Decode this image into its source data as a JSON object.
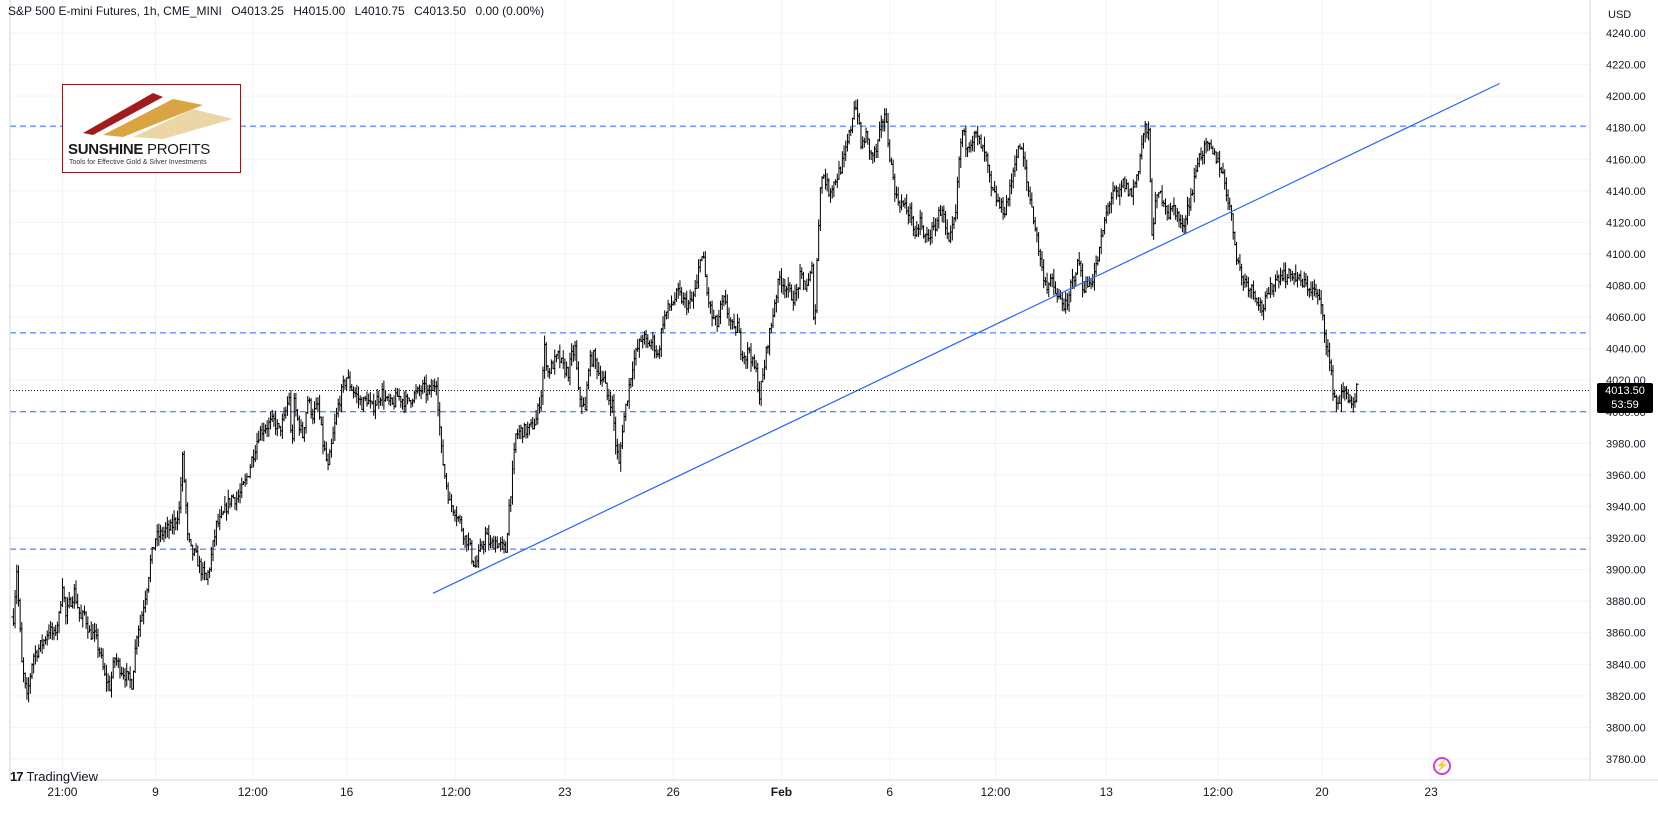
{
  "header": {
    "symbol": "S&P 500 E-mini Futures, 1h, CME_MINI",
    "open": "O4013.25",
    "high": "H4015.00",
    "low": "L4010.75",
    "close": "C4013.50",
    "change": "0.00 (0.00%)"
  },
  "currency": "USD",
  "price_tag": {
    "price": "4013.50",
    "countdown": "53:59"
  },
  "logo": {
    "brand_bold": "SUNSHINE",
    "brand_light": " PROFITS",
    "tagline": "Tools for Effective Gold & Silver Investments"
  },
  "footer": {
    "brand": "TradingView"
  },
  "icons": {
    "alert": "lightning-alert-icon",
    "tv": "tradingview-logo-icon"
  },
  "colors": {
    "candle": "#000000",
    "trendline": "#2962ff",
    "level": "#2962ff",
    "alert": "#d23ed8"
  },
  "chart_data": {
    "type": "candlestick",
    "interval": "1h",
    "ylim": [
      3765,
      4245
    ],
    "y_ticks": [
      3780,
      3800,
      3820,
      3840,
      3860,
      3880,
      3900,
      3920,
      3940,
      3960,
      3980,
      4000,
      4020,
      4040,
      4060,
      4080,
      4100,
      4120,
      4140,
      4160,
      4180,
      4200,
      4220,
      4240
    ],
    "x_tick_labels": [
      "21:00",
      "9",
      "12:00",
      "16",
      "12:00",
      "23",
      "26",
      "Feb",
      "6",
      "12:00",
      "13",
      "12:00",
      "20",
      "23"
    ],
    "x_tick_index": [
      62,
      172,
      287,
      398,
      527,
      656,
      784,
      912,
      1040,
      1165,
      1296,
      1428,
      1551,
      1680
    ],
    "horizontal_levels": [
      4181,
      4050,
      4000,
      3913
    ],
    "current_price": 4013.5,
    "trendline": [
      {
        "x": 500,
        "y": 3885
      },
      {
        "x": 1761,
        "y": 4208
      }
    ],
    "anchors": [
      [
        4,
        3870
      ],
      [
        8,
        3900
      ],
      [
        14,
        3840
      ],
      [
        20,
        3818
      ],
      [
        27,
        3845
      ],
      [
        34,
        3850
      ],
      [
        40,
        3855
      ],
      [
        46,
        3862
      ],
      [
        52,
        3858
      ],
      [
        58,
        3870
      ],
      [
        62,
        3892
      ],
      [
        66,
        3870
      ],
      [
        70,
        3878
      ],
      [
        76,
        3886
      ],
      [
        84,
        3868
      ],
      [
        88,
        3872
      ],
      [
        94,
        3860
      ],
      [
        100,
        3858
      ],
      [
        106,
        3848
      ],
      [
        112,
        3832
      ],
      [
        118,
        3826
      ],
      [
        124,
        3844
      ],
      [
        130,
        3838
      ],
      [
        138,
        3832
      ],
      [
        144,
        3828
      ],
      [
        150,
        3860
      ],
      [
        156,
        3872
      ],
      [
        162,
        3890
      ],
      [
        166,
        3905
      ],
      [
        172,
        3920
      ],
      [
        178,
        3922
      ],
      [
        184,
        3925
      ],
      [
        190,
        3926
      ],
      [
        196,
        3932
      ],
      [
        200,
        3938
      ],
      [
        204,
        3970
      ],
      [
        207,
        3950
      ],
      [
        210,
        3920
      ],
      [
        214,
        3912
      ],
      [
        220,
        3908
      ],
      [
        226,
        3900
      ],
      [
        232,
        3893
      ],
      [
        236,
        3902
      ],
      [
        240,
        3915
      ],
      [
        244,
        3928
      ],
      [
        250,
        3932
      ],
      [
        256,
        3940
      ],
      [
        262,
        3946
      ],
      [
        268,
        3945
      ],
      [
        272,
        3948
      ],
      [
        278,
        3955
      ],
      [
        282,
        3962
      ],
      [
        288,
        3974
      ],
      [
        294,
        3986
      ],
      [
        300,
        3990
      ],
      [
        306,
        3992
      ],
      [
        312,
        3994
      ],
      [
        318,
        3988
      ],
      [
        324,
        3995
      ],
      [
        330,
        4010
      ],
      [
        333,
        3975
      ],
      [
        336,
        4005
      ],
      [
        340,
        3995
      ],
      [
        346,
        3985
      ],
      [
        352,
        4008
      ],
      [
        358,
        3998
      ],
      [
        364,
        4004
      ],
      [
        370,
        3980
      ],
      [
        376,
        3964
      ],
      [
        382,
        3985
      ],
      [
        388,
        4004
      ],
      [
        394,
        4016
      ],
      [
        398,
        4022
      ],
      [
        404,
        4015
      ],
      [
        410,
        4010
      ],
      [
        416,
        4005
      ],
      [
        422,
        4008
      ],
      [
        428,
        4002
      ],
      [
        434,
        4008
      ],
      [
        440,
        4012
      ],
      [
        446,
        4006
      ],
      [
        452,
        4004
      ],
      [
        458,
        4010
      ],
      [
        464,
        4008
      ],
      [
        470,
        4006
      ],
      [
        476,
        4010
      ],
      [
        482,
        4012
      ],
      [
        488,
        4015
      ],
      [
        494,
        4012
      ],
      [
        500,
        4015
      ],
      [
        504,
        4020
      ],
      [
        506,
        4005
      ],
      [
        510,
        3975
      ],
      [
        514,
        3960
      ],
      [
        520,
        3942
      ],
      [
        526,
        3938
      ],
      [
        532,
        3930
      ],
      [
        538,
        3920
      ],
      [
        542,
        3918
      ],
      [
        546,
        3908
      ],
      [
        550,
        3902
      ],
      [
        556,
        3912
      ],
      [
        562,
        3922
      ],
      [
        568,
        3915
      ],
      [
        574,
        3918
      ],
      [
        580,
        3915
      ],
      [
        586,
        3912
      ],
      [
        590,
        3940
      ],
      [
        594,
        3960
      ],
      [
        598,
        3985
      ],
      [
        604,
        3988
      ],
      [
        610,
        3988
      ],
      [
        616,
        3990
      ],
      [
        622,
        3995
      ],
      [
        628,
        4012
      ],
      [
        632,
        4040
      ],
      [
        636,
        4025
      ],
      [
        642,
        4030
      ],
      [
        648,
        4035
      ],
      [
        654,
        4028
      ],
      [
        660,
        4025
      ],
      [
        664,
        4035
      ],
      [
        668,
        4040
      ],
      [
        672,
        4012
      ],
      [
        676,
        4006
      ],
      [
        680,
        4000
      ],
      [
        684,
        4030
      ],
      [
        690,
        4035
      ],
      [
        696,
        4025
      ],
      [
        702,
        4020
      ],
      [
        706,
        4010
      ],
      [
        712,
        4005
      ],
      [
        716,
        3980
      ],
      [
        720,
        3966
      ],
      [
        724,
        3990
      ],
      [
        730,
        4010
      ],
      [
        736,
        4030
      ],
      [
        742,
        4040
      ],
      [
        748,
        4048
      ],
      [
        754,
        4042
      ],
      [
        760,
        4045
      ],
      [
        766,
        4035
      ],
      [
        772,
        4058
      ],
      [
        778,
        4065
      ],
      [
        784,
        4070
      ],
      [
        790,
        4075
      ],
      [
        796,
        4070
      ],
      [
        802,
        4068
      ],
      [
        806,
        4070
      ],
      [
        812,
        4080
      ],
      [
        816,
        4100
      ],
      [
        820,
        4095
      ],
      [
        824,
        4075
      ],
      [
        830,
        4060
      ],
      [
        836,
        4055
      ],
      [
        840,
        4065
      ],
      [
        844,
        4070
      ],
      [
        850,
        4060
      ],
      [
        856,
        4050
      ],
      [
        860,
        4055
      ],
      [
        864,
        4040
      ],
      [
        870,
        4035
      ],
      [
        874,
        4040
      ],
      [
        878,
        4030
      ],
      [
        882,
        4025
      ],
      [
        886,
        4010
      ],
      [
        890,
        4022
      ],
      [
        896,
        4045
      ],
      [
        900,
        4055
      ],
      [
        904,
        4070
      ],
      [
        910,
        4085
      ],
      [
        916,
        4080
      ],
      [
        922,
        4075
      ],
      [
        928,
        4072
      ],
      [
        934,
        4085
      ],
      [
        940,
        4080
      ],
      [
        944,
        4082
      ],
      [
        948,
        4090
      ],
      [
        951,
        4050
      ],
      [
        954,
        4095
      ],
      [
        958,
        4145
      ],
      [
        962,
        4150
      ],
      [
        968,
        4140
      ],
      [
        974,
        4145
      ],
      [
        980,
        4152
      ],
      [
        986,
        4160
      ],
      [
        990,
        4170
      ],
      [
        994,
        4180
      ],
      [
        998,
        4195
      ],
      [
        1002,
        4190
      ],
      [
        1006,
        4168
      ],
      [
        1012,
        4175
      ],
      [
        1018,
        4162
      ],
      [
        1024,
        4165
      ],
      [
        1030,
        4180
      ],
      [
        1034,
        4190
      ],
      [
        1038,
        4172
      ],
      [
        1042,
        4155
      ],
      [
        1048,
        4135
      ],
      [
        1054,
        4132
      ],
      [
        1060,
        4128
      ],
      [
        1066,
        4125
      ],
      [
        1070,
        4108
      ],
      [
        1076,
        4122
      ],
      [
        1080,
        4110
      ],
      [
        1086,
        4112
      ],
      [
        1092,
        4115
      ],
      [
        1098,
        4125
      ],
      [
        1102,
        4130
      ],
      [
        1106,
        4115
      ],
      [
        1110,
        4105
      ],
      [
        1114,
        4115
      ],
      [
        1118,
        4125
      ],
      [
        1122,
        4160
      ],
      [
        1126,
        4178
      ],
      [
        1130,
        4170
      ],
      [
        1136,
        4172
      ],
      [
        1142,
        4175
      ],
      [
        1148,
        4168
      ],
      [
        1154,
        4160
      ],
      [
        1160,
        4140
      ],
      [
        1166,
        4135
      ],
      [
        1170,
        4130
      ],
      [
        1176,
        4128
      ],
      [
        1182,
        4140
      ],
      [
        1188,
        4160
      ],
      [
        1194,
        4168
      ],
      [
        1198,
        4160
      ],
      [
        1202,
        4145
      ],
      [
        1208,
        4130
      ],
      [
        1214,
        4110
      ],
      [
        1220,
        4090
      ],
      [
        1226,
        4080
      ],
      [
        1232,
        4082
      ],
      [
        1238,
        4072
      ],
      [
        1244,
        4070
      ],
      [
        1250,
        4065
      ],
      [
        1254,
        4080
      ],
      [
        1260,
        4090
      ],
      [
        1264,
        4095
      ],
      [
        1268,
        4080
      ],
      [
        1274,
        4080
      ],
      [
        1280,
        4085
      ],
      [
        1284,
        4092
      ],
      [
        1288,
        4102
      ],
      [
        1292,
        4115
      ],
      [
        1298,
        4130
      ],
      [
        1304,
        4140
      ],
      [
        1310,
        4135
      ],
      [
        1316,
        4145
      ],
      [
        1322,
        4140
      ],
      [
        1326,
        4138
      ],
      [
        1330,
        4145
      ],
      [
        1334,
        4155
      ],
      [
        1338,
        4170
      ],
      [
        1342,
        4180
      ],
      [
        1346,
        4175
      ],
      [
        1350,
        4115
      ],
      [
        1354,
        4130
      ],
      [
        1358,
        4138
      ],
      [
        1364,
        4135
      ],
      [
        1370,
        4125
      ],
      [
        1376,
        4130
      ],
      [
        1382,
        4122
      ],
      [
        1386,
        4115
      ],
      [
        1392,
        4130
      ],
      [
        1398,
        4140
      ],
      [
        1404,
        4160
      ],
      [
        1410,
        4165
      ],
      [
        1416,
        4168
      ],
      [
        1422,
        4163
      ],
      [
        1428,
        4160
      ],
      [
        1434,
        4150
      ],
      [
        1438,
        4140
      ],
      [
        1442,
        4130
      ],
      [
        1446,
        4115
      ],
      [
        1450,
        4100
      ],
      [
        1456,
        4085
      ],
      [
        1462,
        4082
      ],
      [
        1468,
        4078
      ],
      [
        1472,
        4075
      ],
      [
        1476,
        4070
      ],
      [
        1480,
        4065
      ],
      [
        1486,
        4072
      ],
      [
        1492,
        4080
      ],
      [
        1498,
        4085
      ],
      [
        1504,
        4088
      ],
      [
        1510,
        4085
      ],
      [
        1516,
        4088
      ],
      [
        1520,
        4085
      ],
      [
        1526,
        4082
      ],
      [
        1532,
        4080
      ],
      [
        1538,
        4078
      ],
      [
        1544,
        4075
      ],
      [
        1548,
        4070
      ],
      [
        1552,
        4060
      ],
      [
        1556,
        4045
      ],
      [
        1560,
        4030
      ],
      [
        1564,
        4015
      ],
      [
        1568,
        4005
      ],
      [
        1572,
        4008
      ],
      [
        1576,
        4012
      ],
      [
        1580,
        4012
      ],
      [
        1584,
        4008
      ],
      [
        1588,
        4003
      ],
      [
        1590,
        4005
      ],
      [
        1592,
        4013.5
      ]
    ]
  }
}
